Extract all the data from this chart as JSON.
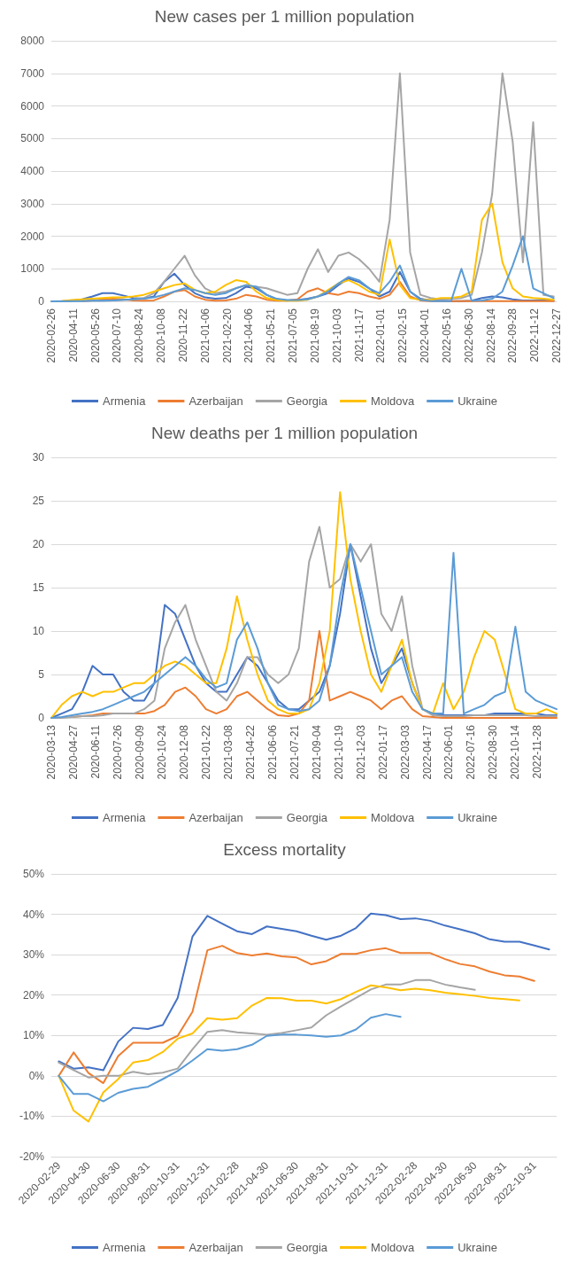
{
  "chart_data": [
    {
      "type": "line",
      "title": "New cases per 1 million population",
      "x": [
        "2020-02-26",
        "2020-03-18",
        "2020-04-08",
        "2020-04-29",
        "2020-05-20",
        "2020-06-10",
        "2020-07-01",
        "2020-07-22",
        "2020-08-12",
        "2020-09-02",
        "2020-09-23",
        "2020-10-14",
        "2020-11-04",
        "2020-11-25",
        "2020-12-16",
        "2021-01-06",
        "2021-01-27",
        "2021-02-17",
        "2021-03-10",
        "2021-03-31",
        "2021-04-21",
        "2021-05-12",
        "2021-06-02",
        "2021-06-23",
        "2021-07-14",
        "2021-08-04",
        "2021-08-25",
        "2021-09-15",
        "2021-10-06",
        "2021-10-27",
        "2021-11-17",
        "2021-12-08",
        "2021-12-29",
        "2022-01-19",
        "2022-02-09",
        "2022-03-02",
        "2022-03-23",
        "2022-04-13",
        "2022-05-04",
        "2022-05-25",
        "2022-06-15",
        "2022-07-06",
        "2022-07-27",
        "2022-08-17",
        "2022-09-07",
        "2022-09-28",
        "2022-10-19",
        "2022-11-09",
        "2022-11-30",
        "2022-12-21"
      ],
      "series": [
        {
          "name": "Armenia",
          "color": "#4472c4",
          "values": [
            0,
            0,
            20,
            60,
            150,
            250,
            250,
            180,
            100,
            80,
            150,
            600,
            850,
            500,
            250,
            120,
            80,
            100,
            250,
            450,
            400,
            200,
            60,
            30,
            40,
            80,
            150,
            250,
            500,
            700,
            600,
            400,
            150,
            300,
            900,
            300,
            80,
            30,
            20,
            10,
            10,
            20,
            100,
            150,
            120,
            60,
            30,
            30,
            40,
            20
          ]
        },
        {
          "name": "Azerbaijan",
          "color": "#ed7d31",
          "values": [
            null,
            null,
            null,
            10,
            30,
            60,
            80,
            60,
            30,
            20,
            30,
            150,
            300,
            350,
            150,
            50,
            20,
            30,
            80,
            200,
            150,
            50,
            20,
            20,
            60,
            300,
            400,
            250,
            200,
            300,
            250,
            150,
            80,
            200,
            600,
            150,
            30,
            10,
            10,
            10,
            10,
            10,
            10,
            10,
            10,
            10,
            10,
            10,
            10,
            10
          ]
        },
        {
          "name": "Georgia",
          "color": "#a5a5a5",
          "values": [
            0,
            10,
            10,
            20,
            20,
            20,
            30,
            40,
            60,
            100,
            250,
            600,
            1000,
            1400,
            800,
            400,
            250,
            300,
            400,
            500,
            450,
            400,
            300,
            200,
            250,
            1000,
            1600,
            900,
            1400,
            1500,
            1300,
            1000,
            600,
            2500,
            7000,
            1500,
            200,
            100,
            60,
            80,
            100,
            200,
            1500,
            3300,
            7000,
            4900,
            1200,
            5500,
            200,
            150
          ]
        },
        {
          "name": "Moldova",
          "color": "#ffc000",
          "values": [
            0,
            10,
            40,
            60,
            80,
            100,
            120,
            120,
            150,
            200,
            300,
            400,
            500,
            550,
            350,
            250,
            300,
            500,
            650,
            600,
            300,
            100,
            40,
            20,
            20,
            50,
            150,
            350,
            550,
            650,
            500,
            300,
            200,
            1900,
            500,
            100,
            50,
            50,
            100,
            100,
            150,
            300,
            2500,
            3000,
            1200,
            400,
            150,
            100,
            80,
            50
          ]
        },
        {
          "name": "Ukraine",
          "color": "#5b9bd5",
          "values": [
            0,
            0,
            10,
            10,
            20,
            20,
            30,
            50,
            60,
            80,
            120,
            200,
            300,
            400,
            350,
            250,
            200,
            250,
            400,
            500,
            450,
            200,
            80,
            40,
            40,
            60,
            150,
            300,
            550,
            750,
            650,
            400,
            250,
            600,
            1100,
            300,
            50,
            10,
            10,
            10,
            1000,
            20,
            30,
            80,
            300,
            1100,
            2000,
            400,
            250,
            100
          ]
        }
      ],
      "xlim": [
        "2020-02-26",
        "2022-12-27"
      ],
      "xticks": [
        "2020-02-26",
        "2020-04-11",
        "2020-05-26",
        "2020-07-10",
        "2020-08-24",
        "2020-10-08",
        "2020-11-22",
        "2021-01-06",
        "2021-02-20",
        "2021-04-06",
        "2021-05-21",
        "2021-07-05",
        "2021-08-19",
        "2021-10-03",
        "2021-11-17",
        "2022-01-01",
        "2022-02-15",
        "2022-04-01",
        "2022-05-16",
        "2022-06-30",
        "2022-08-14",
        "2022-09-28",
        "2022-11-12",
        "2022-12-27"
      ],
      "ylim": [
        0,
        8000
      ],
      "yticks": [
        0,
        1000,
        2000,
        3000,
        4000,
        5000,
        6000,
        7000,
        8000
      ],
      "grid": "y",
      "legend": "bottom",
      "marker": "none",
      "line_style": "solid"
    },
    {
      "type": "line",
      "title": "New deaths per 1 million population",
      "x": [
        "2020-03-13",
        "2020-04-03",
        "2020-04-24",
        "2020-05-15",
        "2020-06-05",
        "2020-06-26",
        "2020-07-17",
        "2020-08-07",
        "2020-08-28",
        "2020-09-18",
        "2020-10-09",
        "2020-10-30",
        "2020-11-20",
        "2020-12-11",
        "2021-01-01",
        "2021-01-22",
        "2021-02-12",
        "2021-03-05",
        "2021-03-26",
        "2021-04-16",
        "2021-05-07",
        "2021-05-28",
        "2021-06-18",
        "2021-07-09",
        "2021-07-30",
        "2021-08-20",
        "2021-09-10",
        "2021-10-01",
        "2021-10-22",
        "2021-11-12",
        "2021-12-03",
        "2021-12-24",
        "2022-01-14",
        "2022-02-04",
        "2022-02-25",
        "2022-03-18",
        "2022-04-08",
        "2022-04-29",
        "2022-05-20",
        "2022-06-10",
        "2022-07-01",
        "2022-07-22",
        "2022-08-12",
        "2022-09-02",
        "2022-09-23",
        "2022-10-14",
        "2022-11-04",
        "2022-11-25",
        "2022-12-16",
        "2023-01-06"
      ],
      "series": [
        {
          "name": "Armenia",
          "color": "#4472c4",
          "values": [
            0,
            0.5,
            1,
            3,
            6,
            5,
            5,
            3,
            2,
            2,
            4,
            13,
            12,
            9,
            6,
            4,
            3,
            3,
            5,
            7,
            6,
            4,
            2,
            1,
            1,
            2,
            3,
            6,
            12,
            20,
            14,
            8,
            4,
            6,
            8,
            4,
            1,
            0.5,
            0.3,
            0.3,
            0.3,
            0.3,
            0.3,
            0.5,
            0.5,
            0.5,
            0.5,
            0.5,
            0.3,
            0.3
          ]
        },
        {
          "name": "Azerbaijan",
          "color": "#ed7d31",
          "values": [
            null,
            null,
            0.1,
            0.2,
            0.3,
            0.5,
            0.5,
            0.5,
            0.5,
            0.5,
            0.8,
            1.5,
            3,
            3.5,
            2.5,
            1,
            0.5,
            1,
            2.5,
            3,
            2,
            1,
            0.3,
            0.2,
            0.5,
            2,
            10,
            2,
            2.5,
            3,
            2.5,
            2,
            1,
            2,
            2.5,
            1,
            0.2,
            0.1,
            0,
            0,
            0,
            0,
            0,
            0,
            0,
            0,
            0,
            0,
            0,
            0
          ]
        },
        {
          "name": "Georgia",
          "color": "#a5a5a5",
          "values": [
            0,
            0,
            0.1,
            0.2,
            0.2,
            0.3,
            0.5,
            0.5,
            0.5,
            1,
            2,
            8,
            11,
            13,
            9,
            6,
            3,
            2,
            4,
            7,
            7,
            5,
            4,
            5,
            8,
            18,
            22,
            15,
            16,
            20,
            18,
            20,
            12,
            10,
            14,
            6,
            1,
            0.3,
            0.2,
            0.2,
            0.2,
            0.3,
            0.3,
            0.3,
            0.3,
            0.3,
            0.3,
            0.2,
            0.2,
            0.2
          ]
        },
        {
          "name": "Moldova",
          "color": "#ffc000",
          "values": [
            0,
            1.5,
            2.5,
            3,
            2.5,
            3,
            3,
            3.5,
            4,
            4,
            5,
            6,
            6.5,
            6,
            5,
            4,
            4,
            8,
            14,
            9,
            5,
            2,
            1,
            0.5,
            0.5,
            1,
            4,
            10,
            26,
            16,
            10,
            5,
            3,
            6,
            9,
            4,
            1,
            0.5,
            4,
            1,
            3,
            7,
            10,
            9,
            5,
            1,
            0.5,
            0.5,
            1,
            0.5
          ]
        },
        {
          "name": "Ukraine",
          "color": "#5b9bd5",
          "values": [
            0,
            0.1,
            0.3,
            0.5,
            0.7,
            1,
            1.5,
            2,
            2.5,
            3,
            4,
            5,
            6,
            7,
            6,
            4.5,
            3.5,
            4,
            9,
            11,
            8,
            4,
            1.5,
            1,
            0.8,
            1,
            2,
            6,
            14,
            20,
            15,
            10,
            5,
            6,
            7,
            3,
            1,
            0.5,
            0.5,
            19,
            0.5,
            1,
            1.5,
            2.5,
            3,
            10.5,
            3,
            2,
            1.5,
            1
          ]
        }
      ],
      "xlim": [
        "2020-03-13",
        "2023-01-06"
      ],
      "xticks": [
        "2020-03-13",
        "2020-04-27",
        "2020-06-11",
        "2020-07-26",
        "2020-09-09",
        "2020-10-24",
        "2020-12-08",
        "2021-01-22",
        "2021-03-08",
        "2021-04-22",
        "2021-06-06",
        "2021-07-21",
        "2021-09-04",
        "2021-10-19",
        "2021-12-03",
        "2022-01-17",
        "2022-03-03",
        "2022-04-17",
        "2022-06-01",
        "2022-07-16",
        "2022-08-30",
        "2022-10-14",
        "2022-11-28"
      ],
      "ylim": [
        0,
        30
      ],
      "yticks": [
        0,
        5,
        10,
        15,
        20,
        25,
        30
      ],
      "grid": "y",
      "legend": "bottom",
      "marker": "none",
      "line_style": "solid"
    },
    {
      "type": "line",
      "title": "Excess mortality",
      "categories": [
        "2020-02-29",
        null,
        "2020-04-30",
        null,
        "2020-06-30",
        null,
        "2020-08-31",
        null,
        "2020-10-31",
        null,
        "2020-12-31",
        null,
        "2021-02-28",
        null,
        "2021-04-30",
        null,
        "2021-06-30",
        null,
        "2021-08-31",
        null,
        "2021-10-31",
        null,
        "2021-12-31",
        null,
        "2022-02-28",
        null,
        "2022-04-30",
        null,
        "2022-06-30",
        null,
        "2022-08-31",
        null,
        "2022-10-31",
        null
      ],
      "series": [
        {
          "name": "Armenia",
          "color": "#4472c4",
          "values": [
            3.6,
            1.8,
            2.1,
            1.4,
            8.5,
            11.9,
            11.6,
            12.6,
            19.3,
            34.5,
            39.6,
            37.7,
            35.8,
            35.1,
            37.0,
            36.4,
            35.8,
            34.7,
            33.7,
            34.7,
            36.6,
            40.2,
            39.8,
            38.8,
            39.0,
            38.4,
            37.2,
            36.3,
            35.3,
            33.8,
            33.2,
            33.2,
            32.3,
            31.3
          ]
        },
        {
          "name": "Azerbaijan",
          "color": "#ed7d31",
          "values": [
            0,
            5.8,
            0.7,
            -1.8,
            4.9,
            8.2,
            8.2,
            8.2,
            9.9,
            15.9,
            31.1,
            32.2,
            30.4,
            29.8,
            30.3,
            29.6,
            29.3,
            27.6,
            28.4,
            30.2,
            30.2,
            31.1,
            31.6,
            30.4,
            30.4,
            30.4,
            28.9,
            27.7,
            27.1,
            25.8,
            24.9,
            24.6,
            23.5,
            null
          ]
        },
        {
          "name": "Georgia",
          "color": "#a5a5a5",
          "values": [
            3.3,
            1.4,
            -0.4,
            0,
            0,
            1.0,
            0.4,
            0.8,
            1.8,
            6.6,
            10.9,
            11.3,
            10.8,
            10.5,
            10.2,
            10.6,
            11.3,
            12.0,
            15.0,
            17.2,
            19.3,
            21.4,
            22.6,
            22.6,
            23.7,
            23.7,
            22.6,
            21.9,
            21.3,
            null,
            null,
            null,
            null,
            null
          ]
        },
        {
          "name": "Moldova",
          "color": "#ffc000",
          "values": [
            0,
            -8.6,
            -11.3,
            -4.1,
            -0.8,
            3.3,
            3.9,
            5.9,
            9.2,
            10.5,
            14.3,
            13.9,
            14.3,
            17.4,
            19.3,
            19.2,
            18.6,
            18.6,
            17.9,
            19.0,
            20.8,
            22.4,
            21.9,
            21.2,
            21.6,
            21.2,
            20.6,
            20.2,
            19.8,
            19.3,
            19.0,
            18.7,
            null,
            null
          ]
        },
        {
          "name": "Ukraine",
          "color": "#5b9bd5",
          "values": [
            0,
            -4.5,
            -4.5,
            -6.3,
            -4.2,
            -3.2,
            -2.7,
            -0.8,
            1.2,
            3.8,
            6.6,
            6.2,
            6.6,
            7.7,
            9.9,
            10.2,
            10.2,
            10.0,
            9.7,
            10.0,
            11.5,
            14.4,
            15.3,
            14.6,
            null,
            null,
            null,
            null,
            null,
            null,
            null,
            null,
            null,
            null
          ]
        }
      ],
      "ylim": [
        -20,
        50
      ],
      "yticks": [
        {
          "value": -20,
          "label": "-20%"
        },
        {
          "value": -10,
          "label": "-10%"
        },
        {
          "value": 0,
          "label": "0%"
        },
        {
          "value": 10,
          "label": "10%"
        },
        {
          "value": 20,
          "label": "20%"
        },
        {
          "value": 30,
          "label": "30%"
        },
        {
          "value": 40,
          "label": "40%"
        },
        {
          "value": 50,
          "label": "50%"
        }
      ],
      "grid": "y",
      "legend": "bottom",
      "marker": "none",
      "line_style": "solid"
    }
  ]
}
